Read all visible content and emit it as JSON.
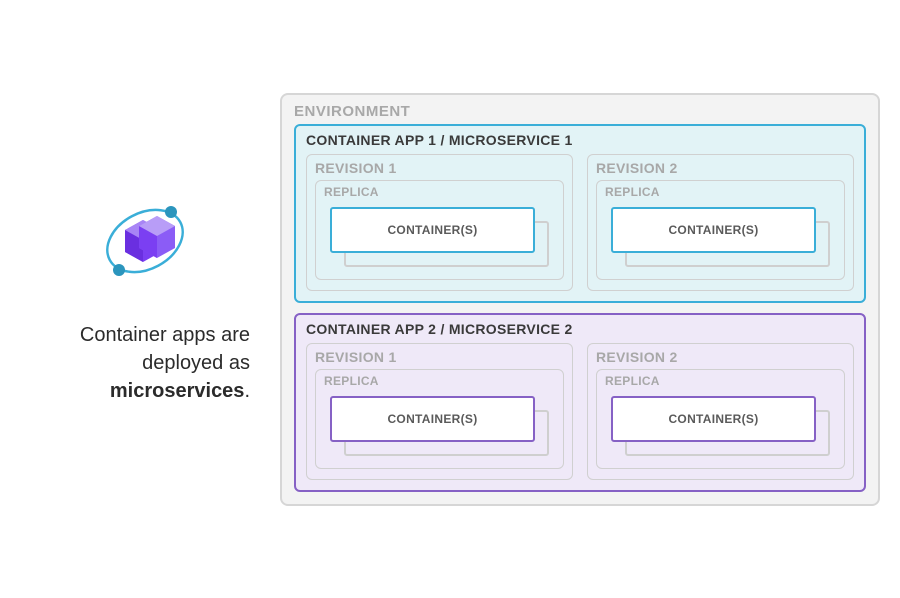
{
  "caption": {
    "line1": "Container apps are",
    "line2": "deployed as",
    "bold": "microservices",
    "suffix": "."
  },
  "icon": {
    "cube_color": "#7b3ff2",
    "cube_light": "#a885f5",
    "orbit_color": "#3aaed8",
    "node_color": "#2b95bd"
  },
  "diagram": {
    "env_label": "ENVIRONMENT",
    "env_border": "#d6d6d6",
    "env_bg": "#f3f3f3",
    "label_gray": "#a8a8a8",
    "box_border_gray": "#d0d0d0",
    "apps": [
      {
        "title": "CONTAINER APP 1 / MICROSERVICE 1",
        "border_color": "#3aaed8",
        "bg_color": "#e2f3f6",
        "container_border": "#3aaed8",
        "container_bg": "#ffffff",
        "container_text_color": "#5a5a5a",
        "revisions": [
          {
            "label": "REVISION 1",
            "replica_label": "REPLICA",
            "container_label": "CONTAINER(S)"
          },
          {
            "label": "REVISION 2",
            "replica_label": "REPLICA",
            "container_label": "CONTAINER(S)"
          }
        ]
      },
      {
        "title": "CONTAINER APP 2 / MICROSERVICE 2",
        "border_color": "#8661c5",
        "bg_color": "#efe9f8",
        "container_border": "#8661c5",
        "container_bg": "#ffffff",
        "container_text_color": "#5a5a5a",
        "revisions": [
          {
            "label": "REVISION 1",
            "replica_label": "REPLICA",
            "container_label": "CONTAINER(S)"
          },
          {
            "label": "REVISION 2",
            "replica_label": "REPLICA",
            "container_label": "CONTAINER(S)"
          }
        ]
      }
    ]
  }
}
